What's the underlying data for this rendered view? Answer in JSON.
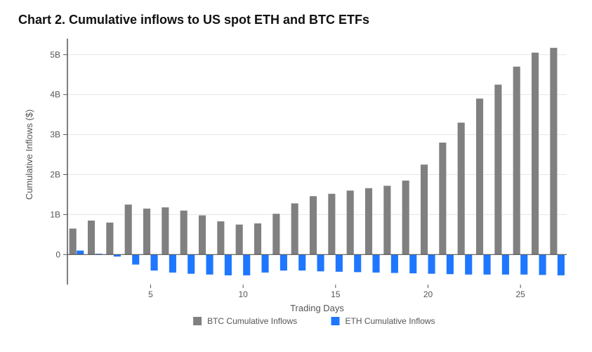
{
  "chart": {
    "type": "bar",
    "title": "Chart 2. Cumulative inflows to US spot ETH and BTC ETFs",
    "title_fontsize": 18,
    "title_fontweight": 700,
    "title_color": "#111111",
    "background_color": "#ffffff",
    "x_axis": {
      "label": "Trading Days",
      "label_fontsize": 13,
      "tick_positions": [
        5,
        10,
        15,
        20,
        25
      ],
      "tick_labels": [
        "5",
        "10",
        "15",
        "20",
        "25"
      ],
      "domain_min": 0.5,
      "domain_max": 27.5,
      "tick_fontsize": 12,
      "axis_color": "#555555"
    },
    "y_axis": {
      "label": "Cumulative Inflows ($)",
      "label_fontsize": 13,
      "tick_positions": [
        0,
        1,
        2,
        3,
        4,
        5
      ],
      "tick_labels": [
        "0",
        "1B",
        "2B",
        "3B",
        "4B",
        "5B"
      ],
      "domain_min": -0.75,
      "domain_max": 5.4,
      "tick_fontsize": 12,
      "axis_color": "#555555",
      "gridline_color": "#e6e6e6"
    },
    "bar_group_width_ratio": 0.8,
    "series": [
      {
        "name": "BTC Cumulative Inflows",
        "color": "#808080",
        "values": [
          0.65,
          0.85,
          0.8,
          1.25,
          1.15,
          1.18,
          1.1,
          0.98,
          0.83,
          0.75,
          0.78,
          1.02,
          1.28,
          1.46,
          1.52,
          1.6,
          1.66,
          1.72,
          1.85,
          2.25,
          2.8,
          3.3,
          3.9,
          4.25,
          4.7,
          5.05,
          5.17
        ]
      },
      {
        "name": "ETH Cumulative Inflows",
        "color": "#1f77ff",
        "values": [
          0.1,
          0.02,
          -0.05,
          -0.25,
          -0.4,
          -0.45,
          -0.48,
          -0.5,
          -0.52,
          -0.52,
          -0.45,
          -0.4,
          -0.4,
          -0.42,
          -0.43,
          -0.44,
          -0.45,
          -0.46,
          -0.47,
          -0.48,
          -0.49,
          -0.5,
          -0.5,
          -0.5,
          -0.5,
          -0.51,
          -0.52
        ]
      }
    ],
    "legend": {
      "items": [
        "BTC Cumulative Inflows",
        "ETH Cumulative Inflows"
      ],
      "swatch_size": 12,
      "fontsize": 12,
      "position": "bottom-center"
    },
    "plot_area_color": "#ffffff",
    "zero_line_color": "#555555",
    "zero_line_width": 1.2,
    "axis_line_width": 1.5
  }
}
